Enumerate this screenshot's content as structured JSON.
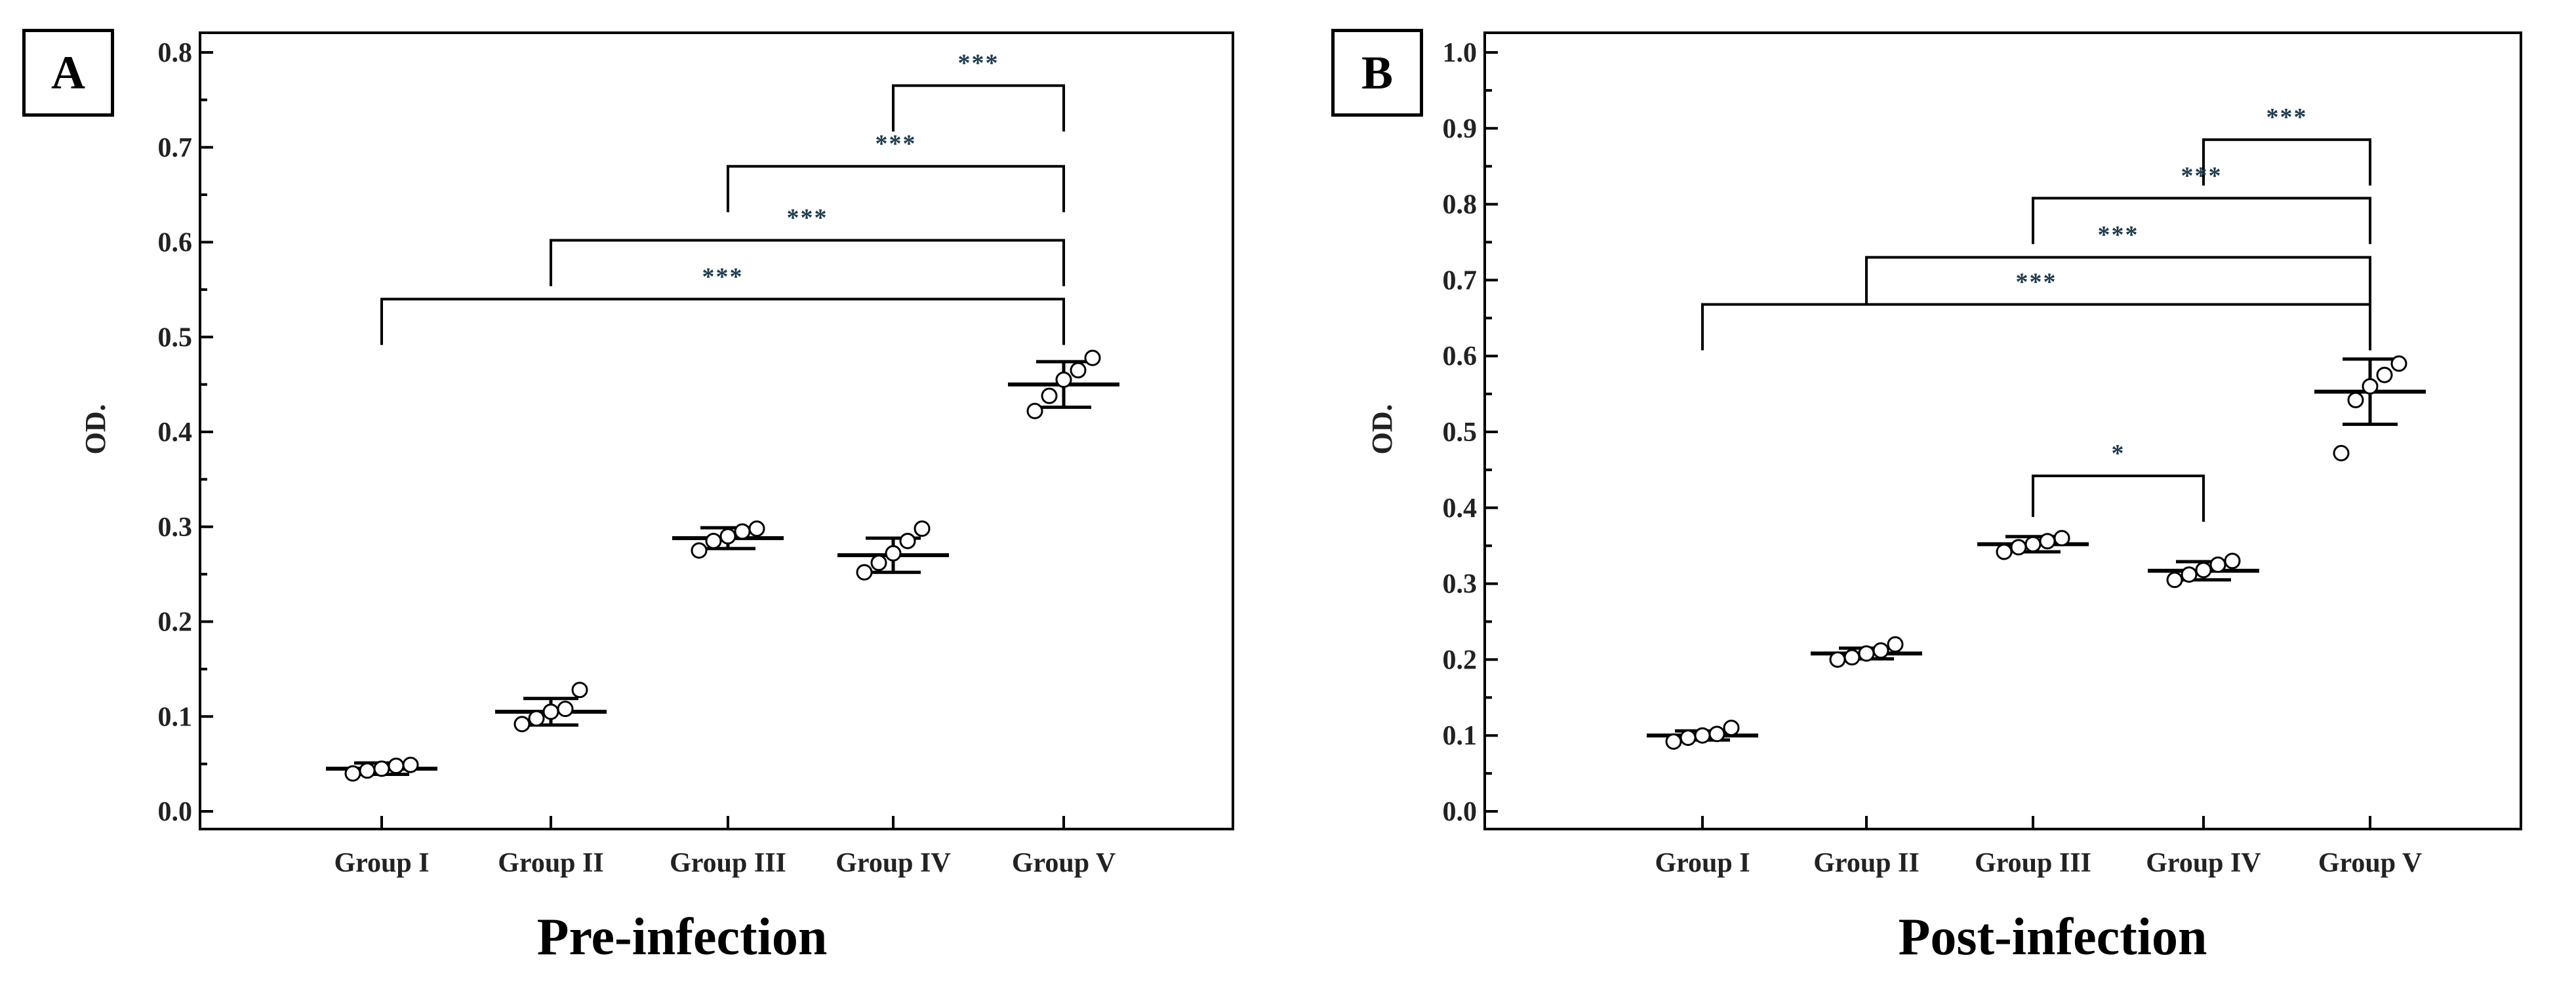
{
  "chart_data": [
    {
      "panel": "A",
      "type": "scatter",
      "title": "Pre-infection",
      "xlabel": "",
      "ylabel": "OD.",
      "ylim": [
        0,
        0.8
      ],
      "yticks": [
        "0.0",
        "0.1",
        "0.2",
        "0.3",
        "0.4",
        "0.5",
        "0.6",
        "0.7",
        "0.8"
      ],
      "ytick_values": [
        0,
        0.1,
        0.2,
        0.3,
        0.4,
        0.5,
        0.6,
        0.7,
        0.8
      ],
      "categories": [
        "Group I",
        "Group II",
        "Group III",
        "Group IV",
        "Group V"
      ],
      "groups": [
        {
          "mean": 0.045,
          "sd": 0.006,
          "points": [
            0.04,
            0.043,
            0.045,
            0.048,
            0.049
          ]
        },
        {
          "mean": 0.105,
          "sd": 0.014,
          "points": [
            0.092,
            0.098,
            0.105,
            0.108,
            0.128
          ]
        },
        {
          "mean": 0.288,
          "sd": 0.011,
          "points": [
            0.275,
            0.285,
            0.29,
            0.295,
            0.298
          ]
        },
        {
          "mean": 0.27,
          "sd": 0.018,
          "points": [
            0.252,
            0.262,
            0.272,
            0.285,
            0.298
          ]
        },
        {
          "mean": 0.45,
          "sd": 0.024,
          "points": [
            0.422,
            0.438,
            0.455,
            0.465,
            0.478
          ]
        }
      ],
      "significance": [
        {
          "from": 3,
          "to": 4,
          "y": 0.765,
          "label": "***"
        },
        {
          "from": 2,
          "to": 4,
          "y": 0.68,
          "label": "***"
        },
        {
          "from": 1,
          "to": 4,
          "y": 0.602,
          "label": "***"
        },
        {
          "from": 0,
          "to": 4,
          "y": 0.54,
          "label": "***"
        }
      ],
      "grid": false,
      "legend": "none"
    },
    {
      "panel": "B",
      "type": "scatter",
      "title": "Post-infection",
      "xlabel": "",
      "ylabel": "OD.",
      "ylim": [
        0,
        1.0
      ],
      "yticks": [
        "0.0",
        "0.1",
        "0.2",
        "0.3",
        "0.4",
        "0.5",
        "0.6",
        "0.7",
        "0.8",
        "0.9",
        "1.0"
      ],
      "ytick_values": [
        0,
        0.1,
        0.2,
        0.3,
        0.4,
        0.5,
        0.6,
        0.7,
        0.8,
        0.9,
        1.0
      ],
      "categories": [
        "Group I",
        "Group II",
        "Group III",
        "Group IV",
        "Group V"
      ],
      "groups": [
        {
          "mean": 0.1,
          "sd": 0.006,
          "points": [
            0.092,
            0.097,
            0.1,
            0.102,
            0.11
          ]
        },
        {
          "mean": 0.208,
          "sd": 0.007,
          "points": [
            0.2,
            0.203,
            0.208,
            0.212,
            0.22
          ]
        },
        {
          "mean": 0.352,
          "sd": 0.01,
          "points": [
            0.342,
            0.348,
            0.352,
            0.356,
            0.36
          ]
        },
        {
          "mean": 0.317,
          "sd": 0.012,
          "points": [
            0.305,
            0.312,
            0.318,
            0.325,
            0.33
          ]
        },
        {
          "mean": 0.553,
          "sd": 0.043,
          "points": [
            0.472,
            0.542,
            0.56,
            0.575,
            0.59
          ]
        }
      ],
      "significance": [
        {
          "from": 3,
          "to": 4,
          "y": 0.885,
          "label": "***"
        },
        {
          "from": 2,
          "to": 4,
          "y": 0.808,
          "label": "***"
        },
        {
          "from": 1,
          "to": 4,
          "y": 0.73,
          "label": "***"
        },
        {
          "from": 0,
          "to": 4,
          "y": 0.668,
          "label": "***"
        },
        {
          "from": 2,
          "to": 3,
          "y": 0.442,
          "label": "*"
        }
      ],
      "grid": false,
      "legend": "none"
    }
  ]
}
